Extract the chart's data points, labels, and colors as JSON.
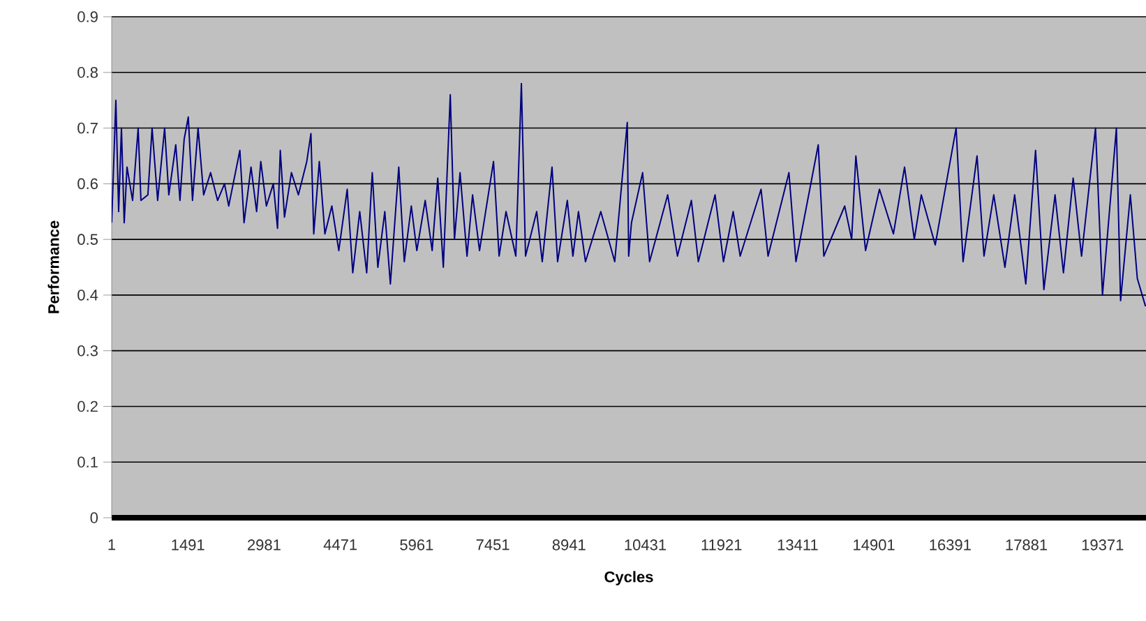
{
  "chart_data": {
    "type": "line",
    "xlabel": "Cycles",
    "ylabel": "Performance",
    "color": "#000080",
    "grid": "y",
    "xlim": [
      1,
      20220
    ],
    "ylim": [
      0,
      0.9
    ],
    "xticks": [
      1,
      1491,
      2981,
      4471,
      5961,
      7451,
      8941,
      10431,
      11921,
      13411,
      14901,
      16391,
      17881,
      19371
    ],
    "yticks": [
      0,
      0.1,
      0.2,
      0.3,
      0.4,
      0.5,
      0.6,
      0.7,
      0.8,
      0.9
    ],
    "x": [
      1,
      83,
      137,
      192,
      246,
      301,
      410,
      519,
      573,
      709,
      791,
      900,
      1036,
      1118,
      1254,
      1336,
      1418,
      1499,
      1581,
      1690,
      1799,
      1935,
      2071,
      2207,
      2289,
      2507,
      2589,
      2725,
      2834,
      2916,
      3025,
      3161,
      3243,
      3297,
      3379,
      3515,
      3651,
      3815,
      3896,
      3951,
      4060,
      4169,
      4305,
      4441,
      4605,
      4714,
      4850,
      4986,
      5095,
      5204,
      5340,
      5449,
      5613,
      5721,
      5858,
      5966,
      6130,
      6266,
      6375,
      6484,
      6620,
      6702,
      6811,
      6947,
      7056,
      7192,
      7465,
      7574,
      7710,
      7901,
      8010,
      8091,
      8309,
      8418,
      8609,
      8718,
      8908,
      9017,
      9126,
      9263,
      9562,
      9835,
      9971,
      10080,
      10107,
      10162,
      10380,
      10516,
      10870,
      11061,
      11333,
      11469,
      11796,
      11960,
      12150,
      12287,
      12695,
      12832,
      13240,
      13377,
      13813,
      13922,
      14330,
      14466,
      14548,
      14738,
      15010,
      15283,
      15500,
      15691,
      15827,
      16100,
      16508,
      16644,
      16917,
      17053,
      17244,
      17462,
      17652,
      17870,
      18061,
      18224,
      18442,
      18606,
      18796,
      18960,
      19233,
      19369,
      19641,
      19723,
      19914,
      20050,
      20210
    ],
    "values": [
      0.53,
      0.75,
      0.55,
      0.7,
      0.53,
      0.63,
      0.57,
      0.7,
      0.57,
      0.58,
      0.7,
      0.57,
      0.7,
      0.58,
      0.67,
      0.57,
      0.68,
      0.72,
      0.57,
      0.7,
      0.58,
      0.62,
      0.57,
      0.6,
      0.56,
      0.66,
      0.53,
      0.63,
      0.55,
      0.64,
      0.56,
      0.6,
      0.52,
      0.66,
      0.54,
      0.62,
      0.58,
      0.64,
      0.69,
      0.51,
      0.64,
      0.51,
      0.56,
      0.48,
      0.59,
      0.44,
      0.55,
      0.44,
      0.62,
      0.45,
      0.55,
      0.42,
      0.63,
      0.46,
      0.56,
      0.48,
      0.57,
      0.48,
      0.61,
      0.45,
      0.76,
      0.5,
      0.62,
      0.47,
      0.58,
      0.48,
      0.64,
      0.47,
      0.55,
      0.47,
      0.78,
      0.47,
      0.55,
      0.46,
      0.63,
      0.46,
      0.57,
      0.47,
      0.55,
      0.46,
      0.55,
      0.46,
      0.6,
      0.71,
      0.47,
      0.53,
      0.62,
      0.46,
      0.58,
      0.47,
      0.57,
      0.46,
      0.58,
      0.46,
      0.55,
      0.47,
      0.59,
      0.47,
      0.62,
      0.46,
      0.67,
      0.47,
      0.56,
      0.5,
      0.65,
      0.48,
      0.59,
      0.51,
      0.63,
      0.5,
      0.58,
      0.49,
      0.7,
      0.46,
      0.65,
      0.47,
      0.58,
      0.45,
      0.58,
      0.42,
      0.66,
      0.41,
      0.58,
      0.44,
      0.61,
      0.47,
      0.7,
      0.4,
      0.7,
      0.39,
      0.58,
      0.43,
      0.38
    ]
  }
}
